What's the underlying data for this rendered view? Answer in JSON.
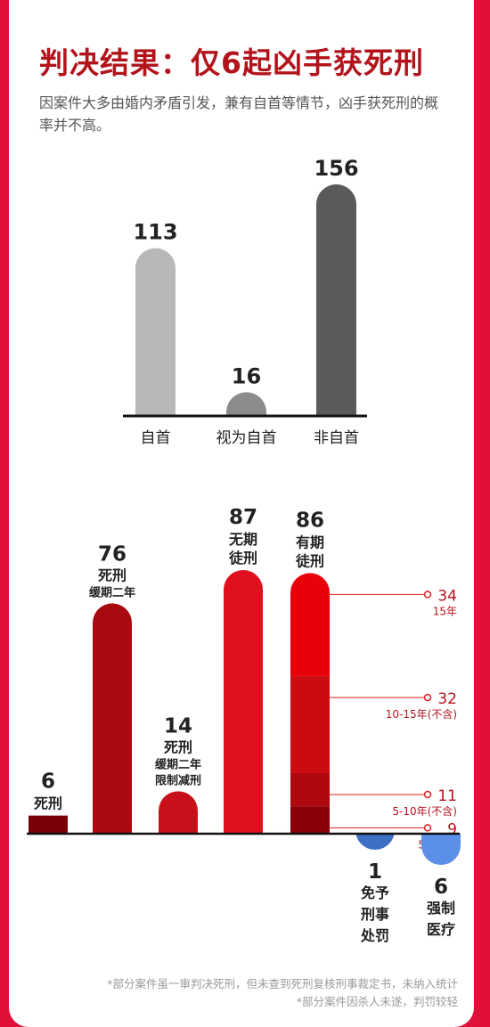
{
  "title": "判决结果：仅6起凶手获死刑",
  "subtitle": "因案件大多由婚内矛盾引发，兼有自首等情节，凶手获死刑的概率并不高。",
  "chart_data": [
    {
      "type": "bar",
      "categories": [
        "自首",
        "视为自首",
        "非自首"
      ],
      "values": [
        113,
        16,
        156
      ],
      "colors": [
        "#b8b8b8",
        "#8c8c8c",
        "#5a5a5a"
      ],
      "ylim": [
        0,
        156
      ]
    },
    {
      "type": "bar",
      "bars": [
        {
          "value": 6,
          "labels": [
            "死刑"
          ],
          "color": "#7a0008"
        },
        {
          "value": 76,
          "labels": [
            "死刑",
            "缓期二年"
          ],
          "color": "#a80a0f"
        },
        {
          "value": 14,
          "labels": [
            "死刑",
            "缓期二年",
            "限制减刑"
          ],
          "color": "#c8101a"
        },
        {
          "value": 87,
          "labels": [
            "无期",
            "徒刑"
          ],
          "color": "#e01020"
        },
        {
          "value": 86,
          "labels": [
            "有期",
            "徒刑"
          ],
          "color": "#e8000a"
        }
      ],
      "stack": {
        "total": 86,
        "segments": [
          {
            "value": 34,
            "label": "15年",
            "color": "#e8000a"
          },
          {
            "value": 32,
            "label": "10-15年(不含)",
            "color": "#cc0a12"
          },
          {
            "value": 11,
            "label": "5-10年(不含)",
            "color": "#b0080f"
          },
          {
            "value": 9,
            "label": "5年以下",
            "color": "#8a0008"
          }
        ]
      },
      "negative": [
        {
          "value": 1,
          "labels": [
            "免予",
            "刑事",
            "处罚"
          ],
          "color": "#3d6fc4"
        },
        {
          "value": 6,
          "labels": [
            "强制",
            "医疗"
          ],
          "color": "#5b8fe8"
        }
      ],
      "ylim": [
        0,
        87
      ]
    }
  ],
  "footnotes": [
    "*部分案件虽一审判决死刑，但未查到死刑复核刑事裁定书，未纳入统计",
    "*部分案件因杀人未遂，判罚较轻"
  ]
}
